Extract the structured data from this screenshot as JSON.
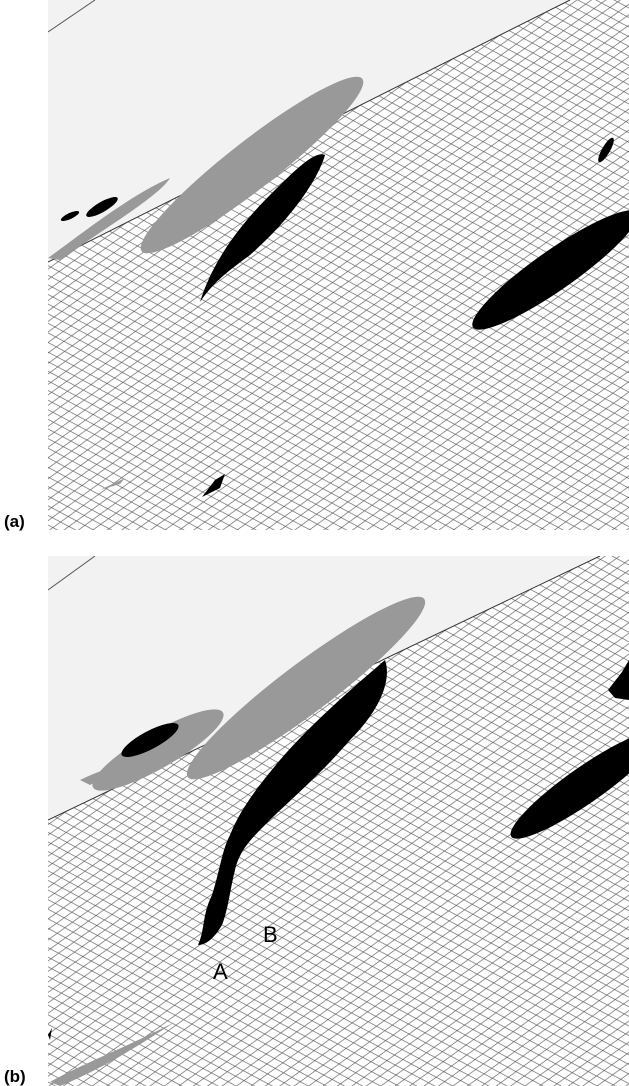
{
  "panels": [
    {
      "label": "(a)"
    },
    {
      "label": "(b)",
      "annotations": [
        "A",
        "B"
      ]
    }
  ]
}
